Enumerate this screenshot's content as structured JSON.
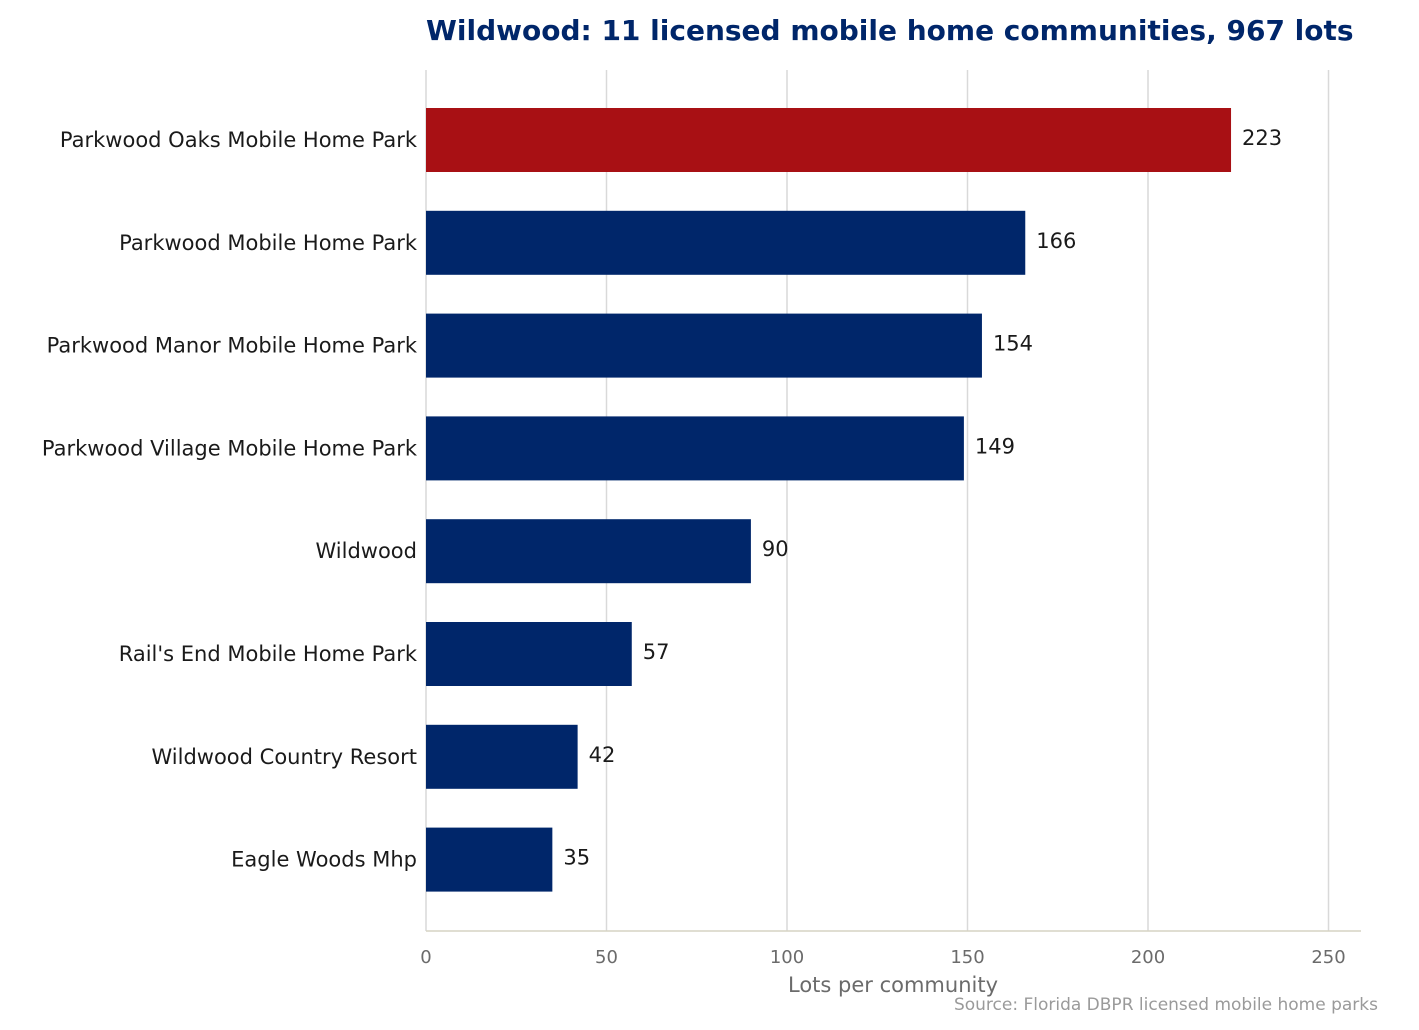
{
  "chart_data": {
    "type": "bar",
    "orientation": "horizontal",
    "title": "Wildwood: 11 licensed mobile home communities, 967 lots",
    "xlabel": "Lots per community",
    "ylabel": "",
    "xlim": [
      0,
      259
    ],
    "xticks": [
      0,
      50,
      100,
      150,
      200,
      250
    ],
    "grid": "vertical",
    "categories": [
      "Parkwood Oaks Mobile Home Park",
      "Parkwood Mobile Home Park",
      "Parkwood Manor Mobile Home Park",
      "Parkwood Village Mobile Home Park",
      "Wildwood",
      "Rail's End Mobile Home Park",
      "Wildwood Country Resort",
      "Eagle Woods Mhp"
    ],
    "values": [
      223,
      166,
      154,
      149,
      90,
      57,
      42,
      35
    ],
    "highlight_index": 0,
    "source": "Source: Florida DBPR licensed mobile home parks"
  },
  "colors": {
    "bar": "#00266a",
    "highlight": "#a81014",
    "grid": "#d9d9d9",
    "axis": "#d6d3c4"
  }
}
